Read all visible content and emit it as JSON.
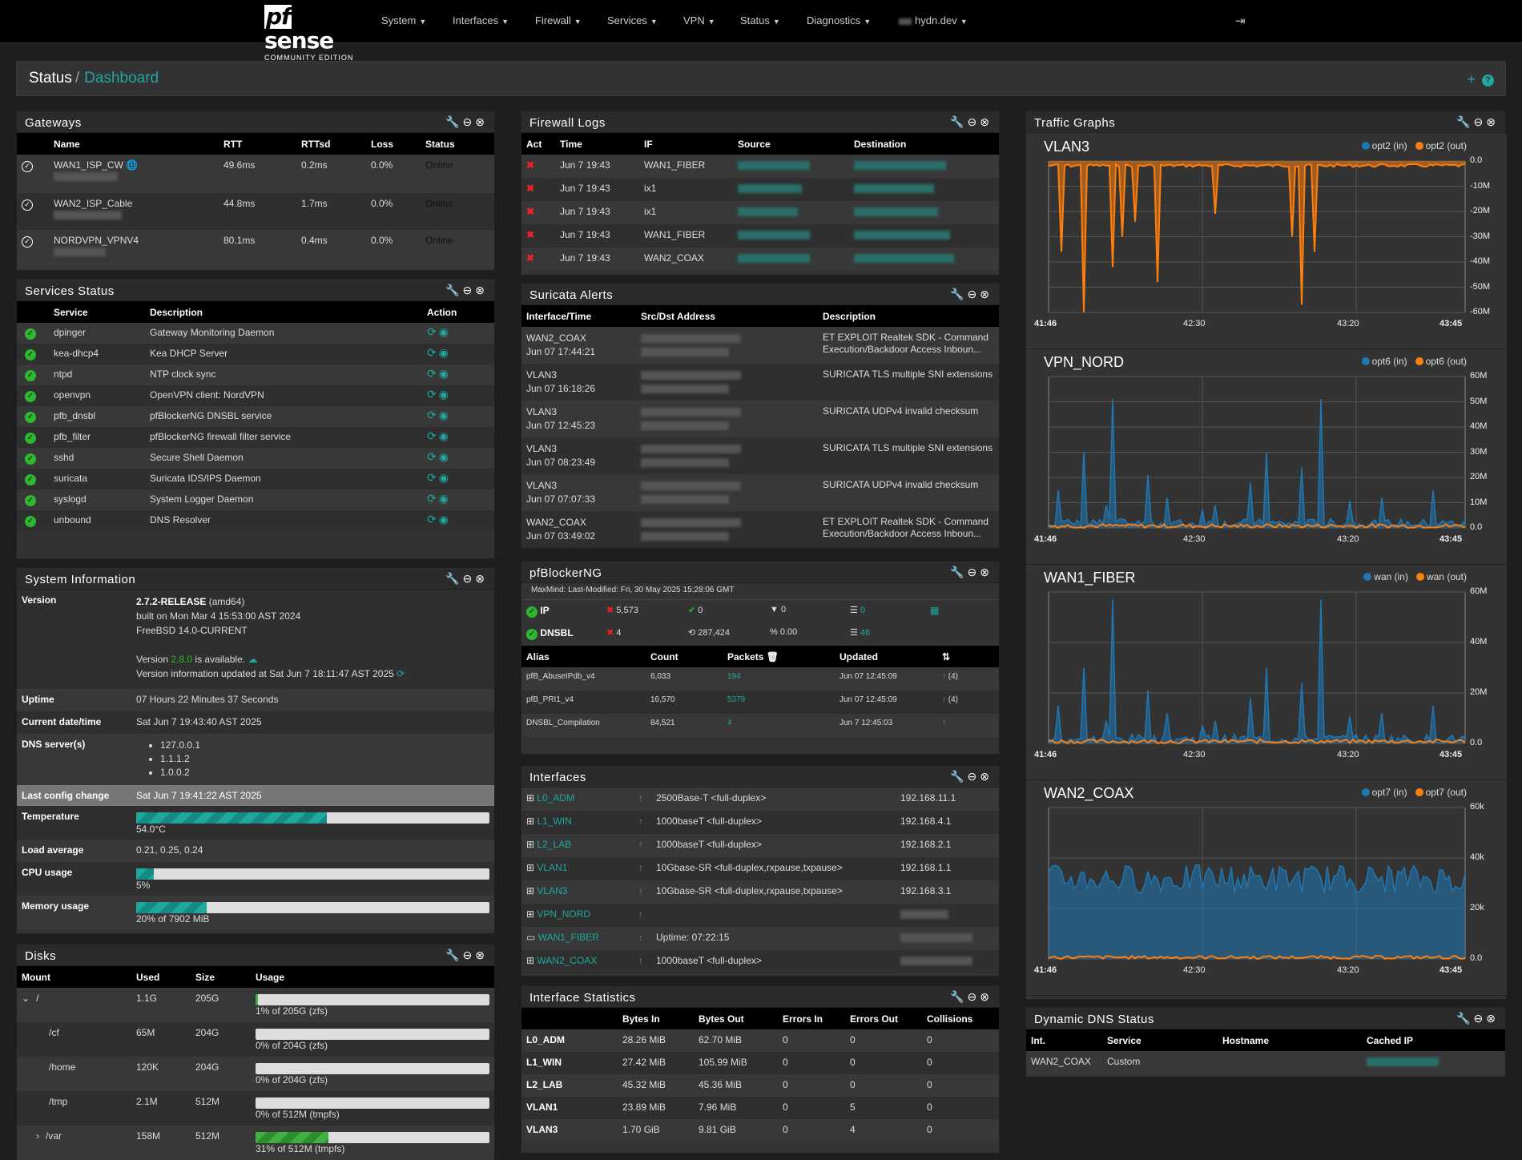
{
  "nav": {
    "logo": "sense",
    "logo_pf": "pf",
    "logo_sub": "COMMUNITY EDITION",
    "menus": [
      "System",
      "Interfaces",
      "Firewall",
      "Services",
      "VPN",
      "Status",
      "Diagnostics"
    ],
    "host": "hydn.dev"
  },
  "breadcrumb": {
    "root": "Status",
    "sep": "/",
    "current": "Dashboard"
  },
  "gateways": {
    "title": "Gateways",
    "headers": [
      "Name",
      "RTT",
      "RTTsd",
      "Loss",
      "Status"
    ],
    "rows": [
      {
        "name": "WAN1_ISP_CW",
        "rtt": "49.6ms",
        "rttsd": "0.2ms",
        "loss": "0.0%",
        "status": "Online"
      },
      {
        "name": "WAN2_ISP_Cable",
        "rtt": "44.8ms",
        "rttsd": "1.7ms",
        "loss": "0.0%",
        "status": "Online"
      },
      {
        "name": "NORDVPN_VPNV4",
        "rtt": "80.1ms",
        "rttsd": "0.4ms",
        "loss": "0.0%",
        "status": "Online"
      }
    ]
  },
  "services": {
    "title": "Services Status",
    "headers": [
      "Service",
      "Description",
      "Action"
    ],
    "rows": [
      {
        "name": "dpinger",
        "desc": "Gateway Monitoring Daemon"
      },
      {
        "name": "kea-dhcp4",
        "desc": "Kea DHCP Server"
      },
      {
        "name": "ntpd",
        "desc": "NTP clock sync"
      },
      {
        "name": "openvpn",
        "desc": "OpenVPN client: NordVPN"
      },
      {
        "name": "pfb_dnsbl",
        "desc": "pfBlockerNG DNSBL service"
      },
      {
        "name": "pfb_filter",
        "desc": "pfBlockerNG firewall filter service"
      },
      {
        "name": "sshd",
        "desc": "Secure Shell Daemon"
      },
      {
        "name": "suricata",
        "desc": "Suricata IDS/IPS Daemon"
      },
      {
        "name": "syslogd",
        "desc": "System Logger Daemon"
      },
      {
        "name": "unbound",
        "desc": "DNS Resolver"
      }
    ]
  },
  "sysinfo": {
    "title": "System Information",
    "version_label": "Version",
    "version": "2.7.2-RELEASE",
    "arch": " (amd64)",
    "built": "built on Mon Mar 4 15:53:00 AST 2024",
    "freebsd": "FreeBSD 14.0-CURRENT",
    "avail_pre": "Version ",
    "avail_ver": "2.8.0",
    "avail_post": " is available.",
    "updated": "Version information updated at Sat Jun 7 18:11:47 AST 2025",
    "uptime_label": "Uptime",
    "uptime": "07 Hours 22 Minutes 37 Seconds",
    "date_label": "Current date/time",
    "date": "Sat Jun 7 19:43:40 AST 2025",
    "dns_label": "DNS server(s)",
    "dns": [
      "127.0.0.1",
      "1.1.1.2",
      "1.0.0.2"
    ],
    "config_label": "Last config change",
    "config": "Sat Jun 7 19:41:22 AST 2025",
    "temp_label": "Temperature",
    "temp": "54.0°C",
    "temp_pct": 0.54,
    "load_label": "Load average",
    "load": "0.21, 0.25, 0.24",
    "cpu_label": "CPU usage",
    "cpu": "5%",
    "cpu_pct": 0.05,
    "mem_label": "Memory usage",
    "mem": "20% of 7902 MiB",
    "mem_pct": 0.2
  },
  "disks": {
    "title": "Disks",
    "headers": [
      "Mount",
      "Used",
      "Size",
      "Usage"
    ],
    "rows": [
      {
        "mount": "/",
        "used": "1.1G",
        "size": "205G",
        "usage": "1% of 205G (zfs)",
        "pct": 0.01
      },
      {
        "mount": "/cf",
        "used": "65M",
        "size": "204G",
        "usage": "0% of 204G (zfs)",
        "pct": 0.0
      },
      {
        "mount": "/home",
        "used": "120K",
        "size": "204G",
        "usage": "0% of 204G (zfs)",
        "pct": 0.0
      },
      {
        "mount": "/tmp",
        "used": "2.1M",
        "size": "512M",
        "usage": "0% of 512M (tmpfs)",
        "pct": 0.0
      },
      {
        "mount": "/var",
        "used": "158M",
        "size": "512M",
        "usage": "31% of 512M (tmpfs)",
        "pct": 0.31
      }
    ]
  },
  "fwlogs": {
    "title": "Firewall Logs",
    "headers": [
      "Act",
      "Time",
      "IF",
      "Source",
      "Destination"
    ],
    "rows": [
      {
        "time": "Jun 7 19:43",
        "if": "WAN1_FIBER"
      },
      {
        "time": "Jun 7 19:43",
        "if": "ix1"
      },
      {
        "time": "Jun 7 19:43",
        "if": "ix1"
      },
      {
        "time": "Jun 7 19:43",
        "if": "WAN1_FIBER"
      },
      {
        "time": "Jun 7 19:43",
        "if": "WAN2_COAX"
      }
    ]
  },
  "suricata": {
    "title": "Suricata Alerts",
    "headers": [
      "Interface/Time",
      "Src/Dst Address",
      "Description"
    ],
    "rows": [
      {
        "iface": "WAN2_COAX",
        "time": "Jun 07 17:44:21",
        "desc": "ET EXPLOIT Realtek SDK - Command Execution/Backdoor Access Inboun..."
      },
      {
        "iface": "VLAN3",
        "time": "Jun 07 16:18:26",
        "desc": "SURICATA TLS multiple SNI extensions"
      },
      {
        "iface": "VLAN3",
        "time": "Jun 07 12:45:23",
        "desc": "SURICATA UDPv4 invalid checksum"
      },
      {
        "iface": "VLAN3",
        "time": "Jun 07 08:23:49",
        "desc": "SURICATA TLS multiple SNI extensions"
      },
      {
        "iface": "VLAN3",
        "time": "Jun 07 07:07:33",
        "desc": "SURICATA UDPv4 invalid checksum"
      },
      {
        "iface": "WAN2_COAX",
        "time": "Jun 07 03:49:02",
        "desc": "ET EXPLOIT Realtek SDK - Command Execution/Backdoor Access Inboun..."
      }
    ]
  },
  "pfb": {
    "title": "pfBlockerNG",
    "maxmind": "MaxMind: Last-Modified: Fri, 30 May 2025 15:28:06 GMT",
    "ip_label": "IP",
    "ip_blocked": "5,573",
    "ip_ok": "0",
    "ip_filter": "0",
    "ip_list": "0",
    "dnsbl_label": "DNSBL",
    "dnsbl_blocked": "4",
    "dnsbl_hist": "287,424",
    "dnsbl_pct": "0.00",
    "dnsbl_list": "46",
    "headers": [
      "Alias",
      "Count",
      "Packets",
      "Updated"
    ],
    "rows": [
      {
        "alias": "pfB_AbuseIPdb_v4",
        "count": "6,033",
        "packets": "194",
        "updated": "Jun 07 12:45:09",
        "extra": "(4)"
      },
      {
        "alias": "pfB_PRI1_v4",
        "count": "16,570",
        "packets": "5379",
        "updated": "Jun 07 12:45:09",
        "extra": "(4)"
      },
      {
        "alias": "DNSBL_Compilation",
        "count": "84,521",
        "packets": "4",
        "updated": "Jun 7 12:45:03",
        "extra": ""
      }
    ]
  },
  "interfaces": {
    "title": "Interfaces",
    "rows": [
      {
        "name": "L0_ADM",
        "media": "2500Base-T <full-duplex>",
        "ip": "192.168.11.1"
      },
      {
        "name": "L1_WIN",
        "media": "1000baseT <full-duplex>",
        "ip": "192.168.4.1"
      },
      {
        "name": "L2_LAB",
        "media": "1000baseT <full-duplex>",
        "ip": "192.168.2.1"
      },
      {
        "name": "VLAN1",
        "media": "10Gbase-SR <full-duplex,rxpause,txpause>",
        "ip": "192.168.1.1"
      },
      {
        "name": "VLAN3",
        "media": "10Gbase-SR <full-duplex,rxpause,txpause>",
        "ip": "192.168.3.1"
      },
      {
        "name": "VPN_NORD",
        "media": "",
        "ip": ""
      },
      {
        "name": "WAN1_FIBER",
        "media": "Uptime: 07:22:15",
        "ip": ""
      },
      {
        "name": "WAN2_COAX",
        "media": "1000baseT <full-duplex>",
        "ip": ""
      }
    ]
  },
  "ifstats": {
    "title": "Interface Statistics",
    "headers": [
      "",
      "Bytes In",
      "Bytes Out",
      "Errors In",
      "Errors Out",
      "Collisions"
    ],
    "rows": [
      {
        "name": "L0_ADM",
        "in": "28.26 MiB",
        "out": "62.70 MiB",
        "ein": "0",
        "eout": "0",
        "col": "0"
      },
      {
        "name": "L1_WIN",
        "in": "27.42 MiB",
        "out": "105.99 MiB",
        "ein": "0",
        "eout": "0",
        "col": "0"
      },
      {
        "name": "L2_LAB",
        "in": "45.32 MiB",
        "out": "45.36 MiB",
        "ein": "0",
        "eout": "0",
        "col": "0"
      },
      {
        "name": "VLAN1",
        "in": "23.89 MiB",
        "out": "7.96 MiB",
        "ein": "0",
        "eout": "5",
        "col": "0"
      },
      {
        "name": "VLAN3",
        "in": "1.70 GiB",
        "out": "9.81 GiB",
        "ein": "0",
        "eout": "4",
        "col": "0"
      }
    ]
  },
  "traffic": {
    "title": "Traffic Graphs",
    "colors": {
      "in": "#1f77b4",
      "out": "#ff7f0e"
    },
    "x_ticks": [
      "41:46",
      "42:30",
      "43:20",
      "43:45"
    ],
    "graphs": [
      {
        "name": "VLAN3",
        "in_label": "opt2 (in)",
        "out_label": "opt2 (out)",
        "y_ticks": [
          "0.0",
          "-10M",
          "-20M",
          "-30M",
          "-40M",
          "-50M",
          "-60M"
        ]
      },
      {
        "name": "VPN_NORD",
        "in_label": "opt6 (in)",
        "out_label": "opt6 (out)",
        "y_ticks": [
          "60M",
          "50M",
          "40M",
          "30M",
          "20M",
          "10M",
          "0.0"
        ]
      },
      {
        "name": "WAN1_FIBER",
        "in_label": "wan (in)",
        "out_label": "wan (out)",
        "y_ticks": [
          "60M",
          "40M",
          "20M",
          "0.0"
        ]
      },
      {
        "name": "WAN2_COAX",
        "in_label": "opt7 (in)",
        "out_label": "opt7 (out)",
        "y_ticks": [
          "60k",
          "40k",
          "20k",
          "0.0"
        ]
      }
    ]
  },
  "ddns": {
    "title": "Dynamic DNS Status",
    "headers": [
      "Int.",
      "Service",
      "Hostname",
      "Cached IP"
    ],
    "row": {
      "int": "WAN2_COAX",
      "service": "Custom"
    }
  }
}
